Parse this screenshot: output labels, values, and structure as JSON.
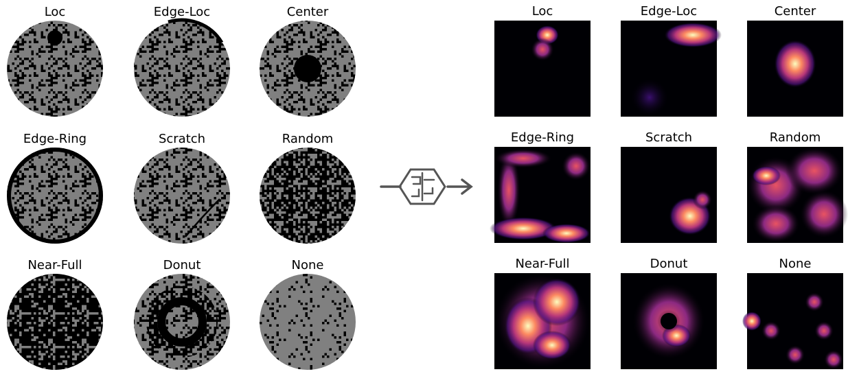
{
  "wafer_maps": {
    "titles": [
      "Loc",
      "Edge-Loc",
      "Center",
      "Edge-Ring",
      "Scratch",
      "Random",
      "Near-Full",
      "Donut",
      "None"
    ]
  },
  "heatmaps": {
    "titles": [
      "Loc",
      "Edge-Loc",
      "Center",
      "Edge-Ring",
      "Scratch",
      "Random",
      "Near-Full",
      "Donut",
      "None"
    ]
  }
}
